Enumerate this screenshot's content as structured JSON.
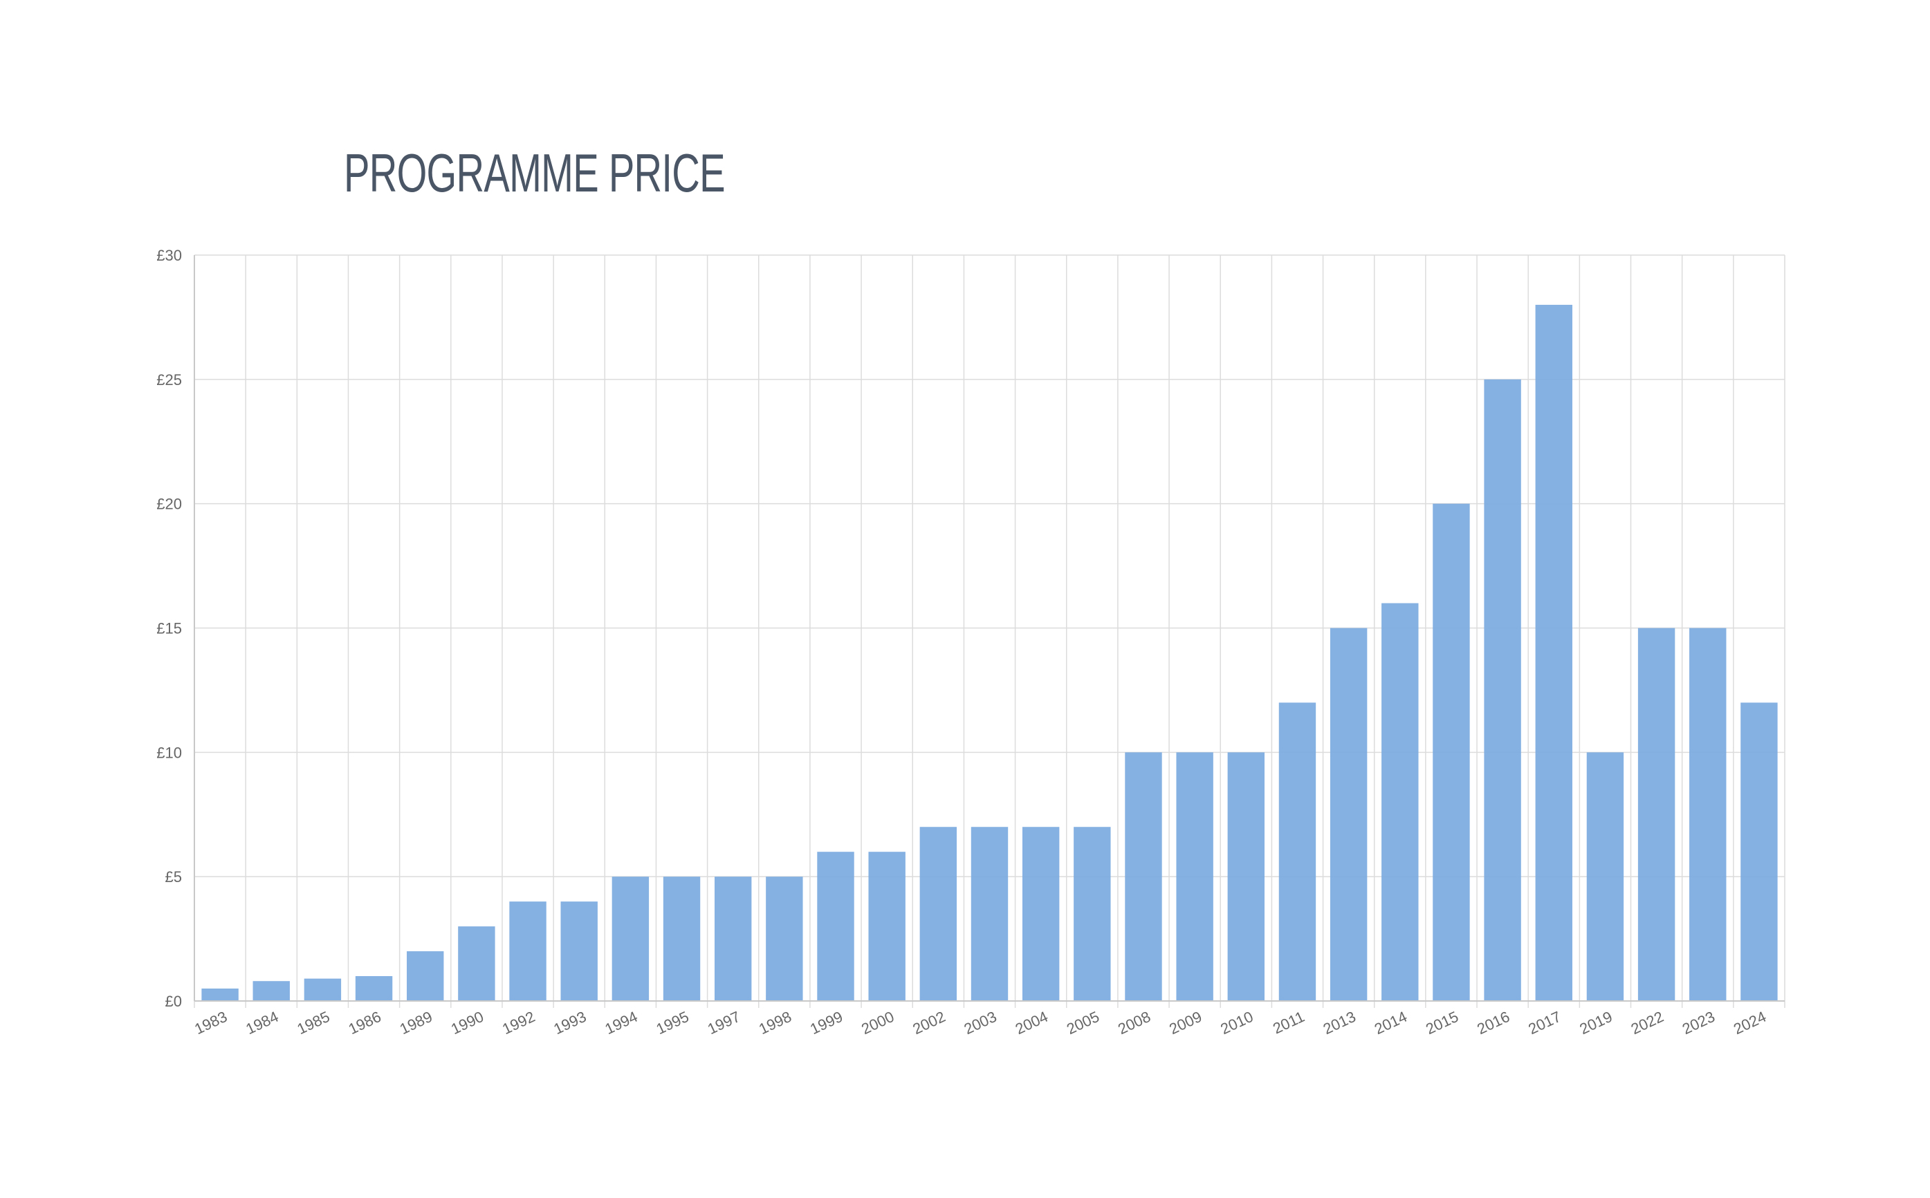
{
  "chart_data": {
    "type": "bar",
    "title": "PROGRAMME PRICE",
    "xlabel": "",
    "ylabel": "",
    "categories": [
      "1983",
      "1984",
      "1985",
      "1986",
      "1989",
      "1990",
      "1992",
      "1993",
      "1994",
      "1995",
      "1997",
      "1998",
      "1999",
      "2000",
      "2002",
      "2003",
      "2004",
      "2005",
      "2008",
      "2009",
      "2010",
      "2011",
      "2013",
      "2014",
      "2015",
      "2016",
      "2017",
      "2019",
      "2022",
      "2023",
      "2024"
    ],
    "values": [
      0.5,
      0.8,
      0.9,
      1,
      2,
      3,
      4,
      4,
      5,
      5,
      5,
      5,
      6,
      6,
      7,
      7,
      7,
      7,
      10,
      10,
      10,
      12,
      15,
      16,
      20,
      25,
      28,
      10,
      15,
      15,
      12
    ],
    "ylim": [
      0,
      30
    ],
    "yticks": [
      0,
      5,
      10,
      15,
      20,
      25,
      30
    ],
    "ytick_labels": [
      "£0",
      "£5",
      "£10",
      "£15",
      "£20",
      "£25",
      "£30"
    ],
    "grid": true,
    "legend": "none"
  },
  "colors": {
    "bar": "#7aa9e0",
    "title": "#4a5565",
    "grid": "#dcdcdc",
    "axis": "#c8c8c8",
    "tick_text": "#666666"
  }
}
